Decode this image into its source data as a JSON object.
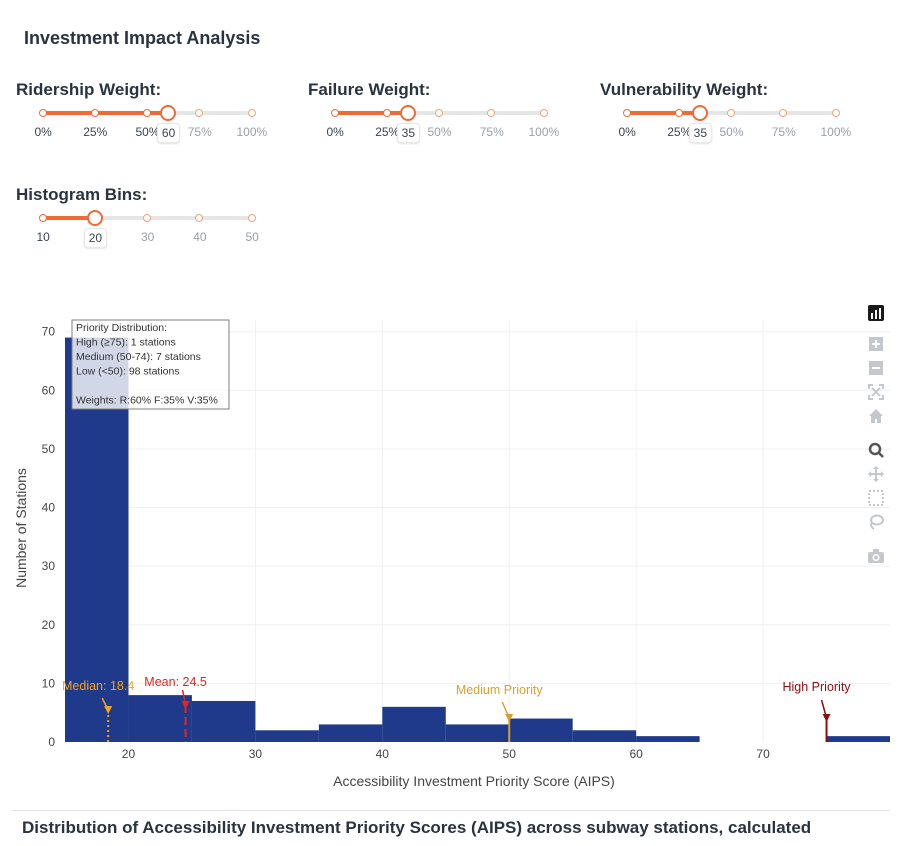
{
  "app": {
    "title": "Investment Impact Analysis"
  },
  "sliders": [
    {
      "id": "ridership",
      "label": "Ridership Weight:",
      "marks": [
        "0%",
        "25%",
        "50%",
        "75%",
        "100%"
      ],
      "value_label": "60",
      "value_fraction": 0.6
    },
    {
      "id": "failure",
      "label": "Failure Weight:",
      "marks": [
        "0%",
        "25%",
        "50%",
        "75%",
        "100%"
      ],
      "value_label": "35",
      "value_fraction": 0.35
    },
    {
      "id": "vulnerability",
      "label": "Vulnerability Weight:",
      "marks": [
        "0%",
        "25%",
        "50%",
        "75%",
        "100%"
      ],
      "value_label": "35",
      "value_fraction": 0.35
    },
    {
      "id": "bins",
      "label": "Histogram Bins:",
      "marks": [
        "10",
        "20",
        "30",
        "40",
        "50"
      ],
      "value_label": "20",
      "value_fraction": 0.25
    }
  ],
  "chart_data": {
    "type": "bar",
    "title": "",
    "xlabel": "Accessibility Investment Priority Score (AIPS)",
    "ylabel": "Number of Stations",
    "xlim": [
      15,
      80
    ],
    "ylim": [
      0,
      72
    ],
    "xticks": [
      20,
      30,
      40,
      50,
      60,
      70
    ],
    "yticks": [
      0,
      10,
      20,
      30,
      40,
      50,
      60,
      70
    ],
    "bars": [
      {
        "x0": 15,
        "x1": 20,
        "value": 69
      },
      {
        "x0": 20,
        "x1": 25,
        "value": 8
      },
      {
        "x0": 25,
        "x1": 30,
        "value": 7
      },
      {
        "x0": 30,
        "x1": 35,
        "value": 2
      },
      {
        "x0": 35,
        "x1": 40,
        "value": 3
      },
      {
        "x0": 40,
        "x1": 45,
        "value": 6
      },
      {
        "x0": 45,
        "x1": 50,
        "value": 3
      },
      {
        "x0": 50,
        "x1": 55,
        "value": 4
      },
      {
        "x0": 55,
        "x1": 60,
        "value": 2
      },
      {
        "x0": 60,
        "x1": 65,
        "value": 1
      },
      {
        "x0": 65,
        "x1": 70,
        "value": 0
      },
      {
        "x0": 70,
        "x1": 75,
        "value": 0
      },
      {
        "x0": 75,
        "x1": 80,
        "value": 1
      }
    ],
    "bar_color": "#1f3a8a",
    "reference_lines": [
      {
        "name": "median",
        "label": "Median: 18.4",
        "x": 18.4,
        "color": "#f5a31a",
        "style": "dotted"
      },
      {
        "name": "mean",
        "label": "Mean: 24.5",
        "x": 24.5,
        "color": "#e8231c",
        "style": "dashed"
      },
      {
        "name": "medium-priority",
        "label": "Medium Priority",
        "x": 50,
        "color": "#d8a030",
        "style": "solid"
      },
      {
        "name": "high-priority",
        "label": "High Priority",
        "x": 75,
        "color": "#8b0e0e",
        "style": "solid"
      }
    ],
    "info_box": {
      "lines": [
        "Priority Distribution:",
        "High (≥75): 1 stations",
        "Medium (50-74): 7 stations",
        "Low (<50): 98 stations",
        "",
        "Weights: R:60% F:35% V:35%"
      ]
    }
  },
  "caption": "Distribution of Accessibility Investment Priority Scores (AIPS) across subway stations, calculated"
}
